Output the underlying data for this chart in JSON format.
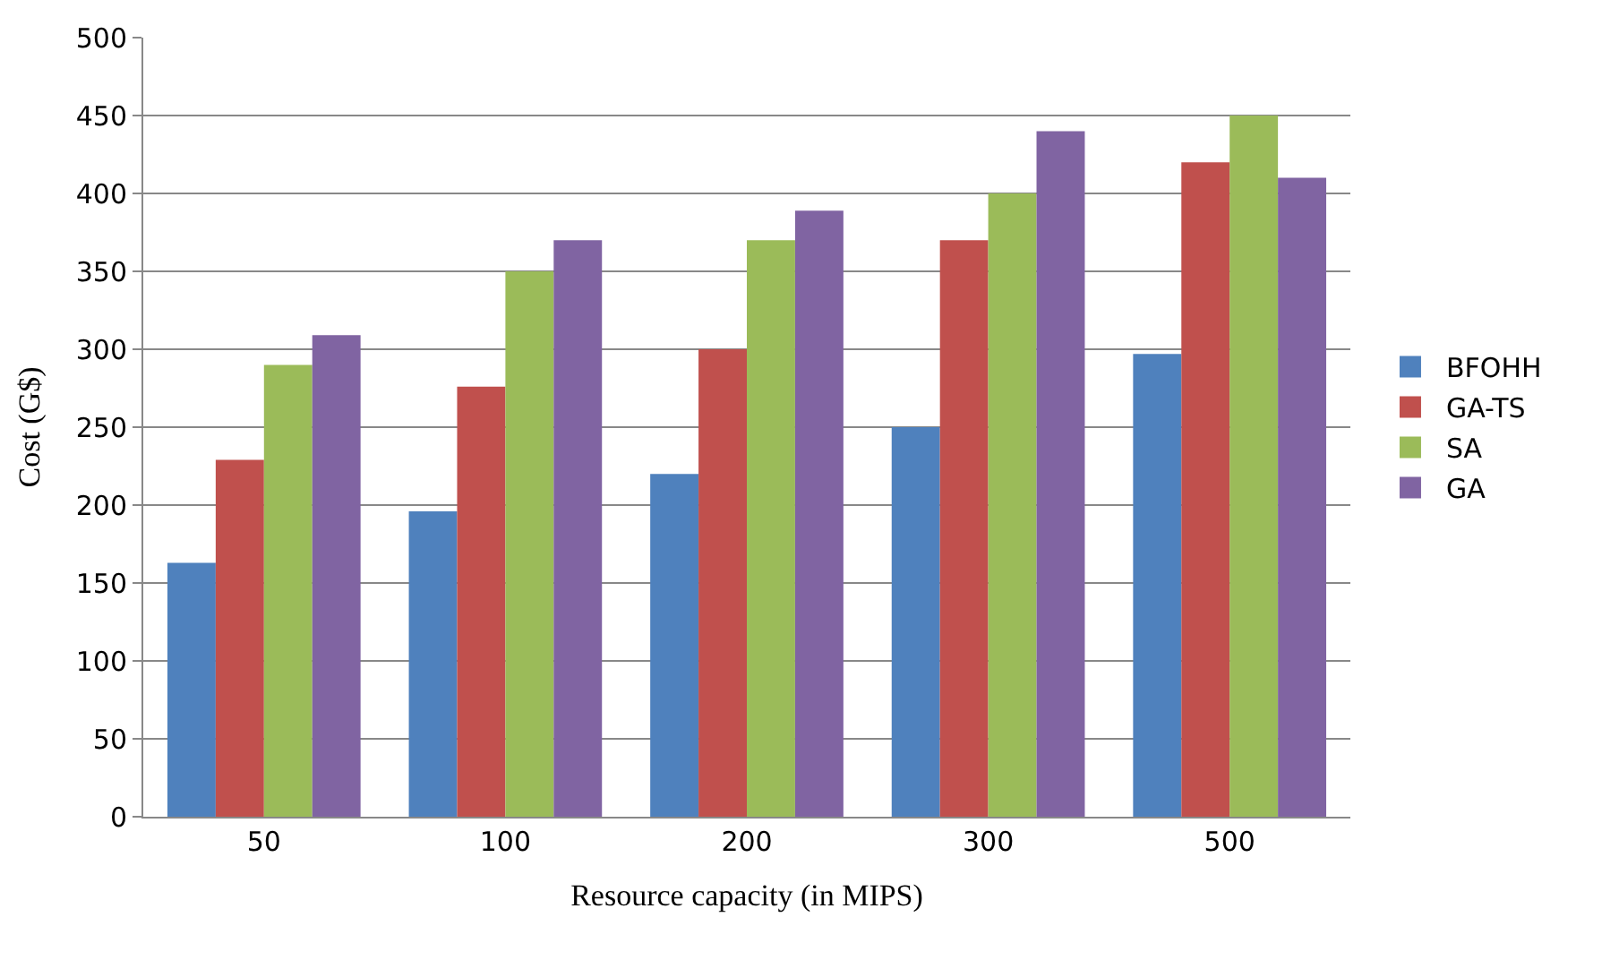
{
  "chart_data": {
    "type": "bar",
    "xlabel": "Resource capacity (in MIPS)",
    "ylabel": "Cost (G$)",
    "categories": [
      "50",
      "100",
      "200",
      "300",
      "500"
    ],
    "series": [
      {
        "name": "BFOHH",
        "color": "#4f81bd",
        "values": [
          163,
          196,
          220,
          250,
          297
        ]
      },
      {
        "name": "GA-TS",
        "color": "#c0504d",
        "values": [
          229,
          276,
          300,
          370,
          420
        ]
      },
      {
        "name": "SA",
        "color": "#9bbb59",
        "values": [
          290,
          350,
          370,
          400,
          450
        ]
      },
      {
        "name": "GA",
        "color": "#8064a2",
        "values": [
          309,
          370,
          389,
          440,
          410
        ]
      }
    ],
    "ylim": [
      0,
      500
    ],
    "yticks": [
      0,
      50,
      100,
      150,
      200,
      250,
      300,
      350,
      400,
      450,
      500
    ],
    "grid": "y",
    "legend": "right"
  }
}
